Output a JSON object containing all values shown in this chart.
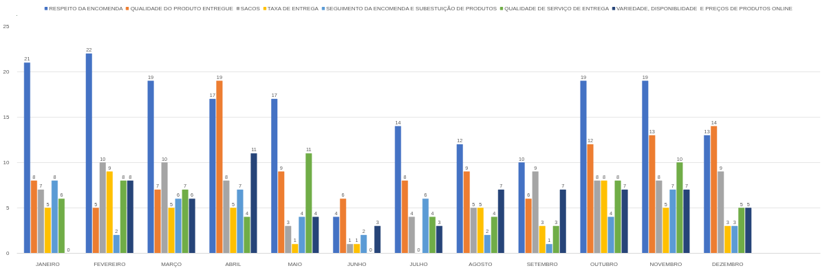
{
  "chart_data": {
    "type": "bar",
    "categories": [
      "JANEIRO",
      "FEVEREIRO",
      "MARÇO",
      "ABRIL",
      "MAIO",
      "JUNHO",
      "JULHO",
      "AGOSTO",
      "SETEMBRO",
      "OUTUBRO",
      "NOVEMBRO",
      "DEZEMBRO",
      null
    ],
    "series": [
      {
        "name": "RESPEITO DA ENCOMENDA",
        "color": "#4472c4",
        "values": [
          21,
          22,
          19,
          17,
          17,
          4,
          14,
          12,
          10,
          19,
          19,
          13,
          null
        ]
      },
      {
        "name": "QUALIDADE DO PRODUTO ENTREGUE",
        "color": "#ed7d31",
        "values": [
          8,
          5,
          7,
          19,
          9,
          6,
          8,
          9,
          6,
          12,
          13,
          14,
          null
        ]
      },
      {
        "name": "SACOS",
        "color": "#a5a5a5",
        "values": [
          7,
          10,
          10,
          8,
          3,
          1,
          4,
          5,
          9,
          8,
          8,
          9,
          null
        ]
      },
      {
        "name": "TAXA DE ENTREGA",
        "color": "#ffc000",
        "values": [
          5,
          9,
          5,
          5,
          1,
          1,
          0,
          5,
          3,
          8,
          5,
          3,
          null
        ]
      },
      {
        "name": "SEGUIMENTO DA ENCOMENDA E SUBESTUIÇÃO DE PRODUTOS",
        "color": "#5b9bd5",
        "values": [
          8,
          2,
          6,
          7,
          4,
          2,
          6,
          2,
          1,
          4,
          7,
          3,
          null
        ]
      },
      {
        "name": "QUALIDADE DE SERVIÇO DE ENTREGA",
        "color": "#70ad47",
        "values": [
          6,
          8,
          7,
          4,
          11,
          0,
          4,
          4,
          3,
          8,
          10,
          5,
          null
        ]
      },
      {
        "name": "VARIEDADE, DISPONIBLIDADE  E PREÇOS DE PRODUTOS ONLINE",
        "color": "#264478",
        "values": [
          0,
          8,
          6,
          11,
          4,
          3,
          3,
          7,
          7,
          7,
          7,
          5,
          null
        ]
      }
    ],
    "ylim": [
      0,
      25
    ],
    "yticks": [
      0,
      5,
      10,
      15,
      20,
      25
    ],
    "grid": "y",
    "legend": "top",
    "data_labels": true
  }
}
